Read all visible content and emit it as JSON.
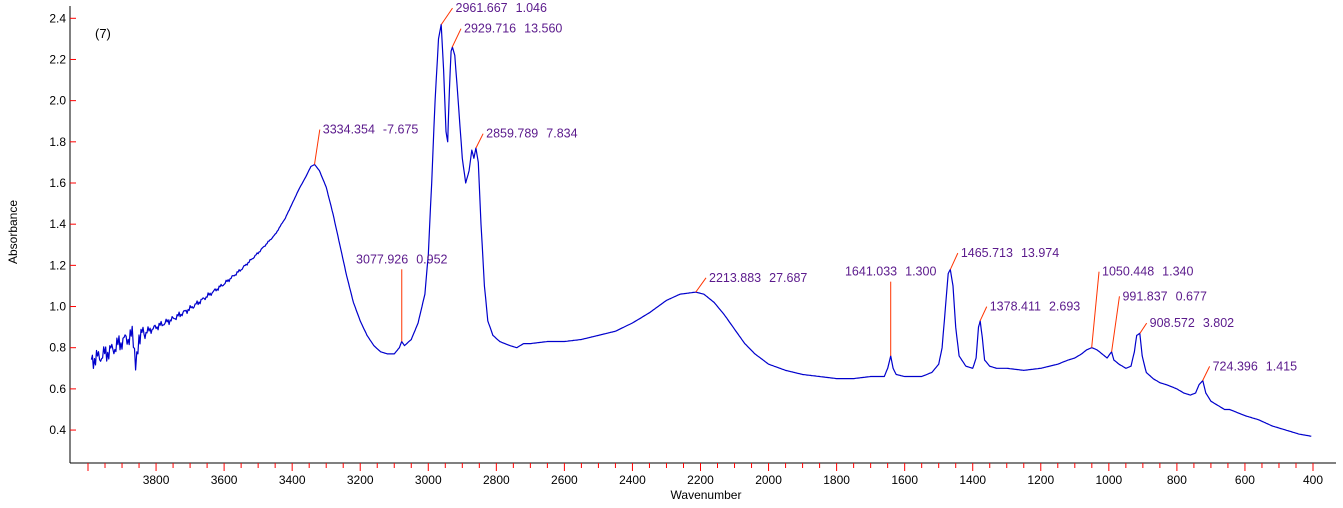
{
  "chart_data": {
    "type": "line",
    "panel_tag": "(7)",
    "title": "",
    "xlabel": "Wavenumber",
    "ylabel": "Absorbance",
    "x_reversed": true,
    "xlim": [
      4000,
      400
    ],
    "ylim": [
      0.24,
      2.45
    ],
    "x_ticks": [
      3800,
      3600,
      3400,
      3200,
      3000,
      2800,
      2600,
      2400,
      2200,
      2000,
      1800,
      1600,
      1400,
      1200,
      1000,
      800,
      600,
      400
    ],
    "x_tick_labels": [
      "3800",
      "3600",
      "3400",
      "3200",
      "3000",
      "2800",
      "2600",
      "2400",
      "2200",
      "2000",
      "1800",
      "1600",
      "1400",
      "1200",
      "1000",
      "800",
      "600",
      "400"
    ],
    "y_ticks": [
      0.4,
      0.6,
      0.8,
      1.0,
      1.2,
      1.4,
      1.6,
      1.8,
      2.0,
      2.2,
      2.4
    ],
    "y_tick_labels": [
      "0.4",
      "0.6",
      "0.8",
      "1.0",
      "1.2",
      "1.4",
      "1.6",
      "1.8",
      "2.0",
      "2.2",
      "2.4"
    ],
    "grid": false,
    "colors": {
      "spectrum": "#0000cc",
      "peak_leader": "#ff3300",
      "peak_text": "#5b1a8c",
      "axis_tick": "#ff0000",
      "axis": "#000000"
    },
    "series": [
      {
        "noise_until_x": 3830,
        "points": [
          [
            3990,
            0.74
          ],
          [
            3960,
            0.76
          ],
          [
            3930,
            0.79
          ],
          [
            3900,
            0.83
          ],
          [
            3870,
            0.86
          ],
          [
            3860,
            0.72
          ],
          [
            3850,
            0.86
          ],
          [
            3800,
            0.9
          ],
          [
            3750,
            0.94
          ],
          [
            3700,
            0.99
          ],
          [
            3650,
            1.05
          ],
          [
            3600,
            1.11
          ],
          [
            3550,
            1.18
          ],
          [
            3500,
            1.26
          ],
          [
            3450,
            1.35
          ],
          [
            3420,
            1.43
          ],
          [
            3400,
            1.5
          ],
          [
            3380,
            1.57
          ],
          [
            3360,
            1.63
          ],
          [
            3345,
            1.68
          ],
          [
            3334,
            1.69
          ],
          [
            3320,
            1.66
          ],
          [
            3300,
            1.58
          ],
          [
            3280,
            1.45
          ],
          [
            3260,
            1.3
          ],
          [
            3240,
            1.15
          ],
          [
            3220,
            1.02
          ],
          [
            3200,
            0.93
          ],
          [
            3180,
            0.86
          ],
          [
            3160,
            0.81
          ],
          [
            3140,
            0.78
          ],
          [
            3120,
            0.77
          ],
          [
            3100,
            0.77
          ],
          [
            3085,
            0.8
          ],
          [
            3078,
            0.83
          ],
          [
            3070,
            0.81
          ],
          [
            3050,
            0.84
          ],
          [
            3030,
            0.92
          ],
          [
            3010,
            1.06
          ],
          [
            3000,
            1.25
          ],
          [
            2990,
            1.6
          ],
          [
            2980,
            2.0
          ],
          [
            2970,
            2.3
          ],
          [
            2962,
            2.37
          ],
          [
            2955,
            2.15
          ],
          [
            2948,
            1.85
          ],
          [
            2943,
            1.8
          ],
          [
            2938,
            2.05
          ],
          [
            2933,
            2.24
          ],
          [
            2929,
            2.26
          ],
          [
            2922,
            2.22
          ],
          [
            2910,
            1.95
          ],
          [
            2900,
            1.72
          ],
          [
            2890,
            1.6
          ],
          [
            2880,
            1.66
          ],
          [
            2872,
            1.76
          ],
          [
            2866,
            1.72
          ],
          [
            2860,
            1.77
          ],
          [
            2853,
            1.7
          ],
          [
            2845,
            1.4
          ],
          [
            2835,
            1.1
          ],
          [
            2825,
            0.93
          ],
          [
            2810,
            0.86
          ],
          [
            2790,
            0.83
          ],
          [
            2760,
            0.81
          ],
          [
            2740,
            0.8
          ],
          [
            2720,
            0.82
          ],
          [
            2700,
            0.82
          ],
          [
            2650,
            0.83
          ],
          [
            2600,
            0.83
          ],
          [
            2550,
            0.84
          ],
          [
            2500,
            0.86
          ],
          [
            2450,
            0.88
          ],
          [
            2400,
            0.92
          ],
          [
            2350,
            0.97
          ],
          [
            2300,
            1.03
          ],
          [
            2260,
            1.06
          ],
          [
            2214,
            1.07
          ],
          [
            2190,
            1.06
          ],
          [
            2160,
            1.02
          ],
          [
            2130,
            0.96
          ],
          [
            2100,
            0.89
          ],
          [
            2070,
            0.82
          ],
          [
            2040,
            0.77
          ],
          [
            2000,
            0.72
          ],
          [
            1950,
            0.69
          ],
          [
            1900,
            0.67
          ],
          [
            1850,
            0.66
          ],
          [
            1800,
            0.65
          ],
          [
            1750,
            0.65
          ],
          [
            1700,
            0.66
          ],
          [
            1660,
            0.66
          ],
          [
            1650,
            0.7
          ],
          [
            1641,
            0.76
          ],
          [
            1634,
            0.7
          ],
          [
            1625,
            0.67
          ],
          [
            1600,
            0.66
          ],
          [
            1550,
            0.66
          ],
          [
            1520,
            0.68
          ],
          [
            1500,
            0.72
          ],
          [
            1490,
            0.8
          ],
          [
            1480,
            1.0
          ],
          [
            1472,
            1.16
          ],
          [
            1466,
            1.18
          ],
          [
            1458,
            1.1
          ],
          [
            1450,
            0.9
          ],
          [
            1440,
            0.76
          ],
          [
            1420,
            0.71
          ],
          [
            1400,
            0.7
          ],
          [
            1390,
            0.75
          ],
          [
            1383,
            0.9
          ],
          [
            1378,
            0.93
          ],
          [
            1372,
            0.85
          ],
          [
            1365,
            0.74
          ],
          [
            1350,
            0.71
          ],
          [
            1330,
            0.7
          ],
          [
            1300,
            0.7
          ],
          [
            1250,
            0.69
          ],
          [
            1200,
            0.7
          ],
          [
            1150,
            0.72
          ],
          [
            1120,
            0.74
          ],
          [
            1100,
            0.75
          ],
          [
            1080,
            0.77
          ],
          [
            1065,
            0.79
          ],
          [
            1050,
            0.8
          ],
          [
            1035,
            0.79
          ],
          [
            1020,
            0.77
          ],
          [
            1005,
            0.75
          ],
          [
            992,
            0.78
          ],
          [
            985,
            0.74
          ],
          [
            970,
            0.72
          ],
          [
            950,
            0.7
          ],
          [
            935,
            0.71
          ],
          [
            925,
            0.78
          ],
          [
            918,
            0.86
          ],
          [
            909,
            0.87
          ],
          [
            902,
            0.76
          ],
          [
            890,
            0.68
          ],
          [
            870,
            0.65
          ],
          [
            850,
            0.63
          ],
          [
            830,
            0.62
          ],
          [
            800,
            0.6
          ],
          [
            780,
            0.58
          ],
          [
            760,
            0.57
          ],
          [
            745,
            0.58
          ],
          [
            735,
            0.62
          ],
          [
            724,
            0.64
          ],
          [
            715,
            0.58
          ],
          [
            700,
            0.54
          ],
          [
            680,
            0.52
          ],
          [
            660,
            0.5
          ],
          [
            645,
            0.5
          ],
          [
            630,
            0.49
          ],
          [
            600,
            0.47
          ],
          [
            560,
            0.45
          ],
          [
            520,
            0.42
          ],
          [
            480,
            0.4
          ],
          [
            440,
            0.38
          ],
          [
            405,
            0.37
          ]
        ]
      }
    ],
    "annotations": [
      {
        "x": 2961.667,
        "y": 2.37,
        "wavenumber": "2961.667",
        "value": "1.046",
        "label_x": 2920,
        "label_y": 2.43
      },
      {
        "x": 2929.716,
        "y": 2.26,
        "wavenumber": "2929.716",
        "value": "13.560",
        "label_x": 2895,
        "label_y": 2.33
      },
      {
        "x": 3334.354,
        "y": 1.69,
        "wavenumber": "3334.354",
        "value": "-7.675",
        "label_x": 3310,
        "label_y": 1.84
      },
      {
        "x": 2859.789,
        "y": 1.77,
        "wavenumber": "2859.789",
        "value": "7.834",
        "label_x": 2830,
        "label_y": 1.82
      },
      {
        "x": 3077.926,
        "y": 0.83,
        "wavenumber": "3077.926",
        "value": "0.952",
        "label_x": 3078,
        "label_y": 1.21
      },
      {
        "x": 2213.883,
        "y": 1.07,
        "wavenumber": "2213.883",
        "value": "27.687",
        "label_x": 2175,
        "label_y": 1.12
      },
      {
        "x": 1641.033,
        "y": 0.76,
        "wavenumber": "1641.033",
        "value": "1.300",
        "label_x": 1641,
        "label_y": 1.15
      },
      {
        "x": 1465.713,
        "y": 1.18,
        "wavenumber": "1465.713",
        "value": "13.974",
        "label_x": 1435,
        "label_y": 1.24
      },
      {
        "x": 1378.411,
        "y": 0.93,
        "wavenumber": "1378.411",
        "value": "2.693",
        "label_x": 1350,
        "label_y": 0.98
      },
      {
        "x": 1050.448,
        "y": 0.8,
        "wavenumber": "1050.448",
        "value": "1.340",
        "label_x": 1020,
        "label_y": 1.15
      },
      {
        "x": 991.837,
        "y": 0.78,
        "wavenumber": "991.837",
        "value": "0.677",
        "label_x": 960,
        "label_y": 1.03
      },
      {
        "x": 908.572,
        "y": 0.87,
        "wavenumber": "908.572",
        "value": "3.802",
        "label_x": 880,
        "label_y": 0.9
      },
      {
        "x": 724.396,
        "y": 0.64,
        "wavenumber": "724.396",
        "value": "1.415",
        "label_x": 695,
        "label_y": 0.69
      }
    ]
  }
}
